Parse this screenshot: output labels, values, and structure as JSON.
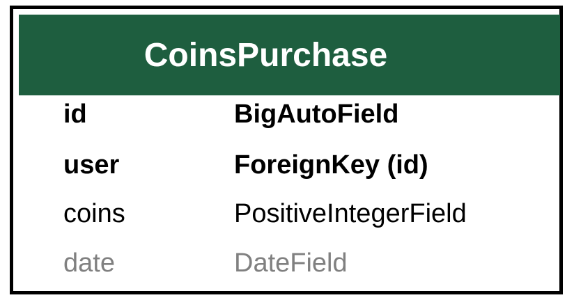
{
  "model": {
    "title": "CoinsPurchase",
    "header_color": "#1e5e3f",
    "fields": [
      {
        "name": "id",
        "type": "BigAutoField",
        "style": "bold"
      },
      {
        "name": "user",
        "type": "ForeignKey (id)",
        "style": "bold"
      },
      {
        "name": "coins",
        "type": "PositiveIntegerField",
        "style": "normal"
      },
      {
        "name": "date",
        "type": "DateField",
        "style": "muted"
      }
    ]
  }
}
